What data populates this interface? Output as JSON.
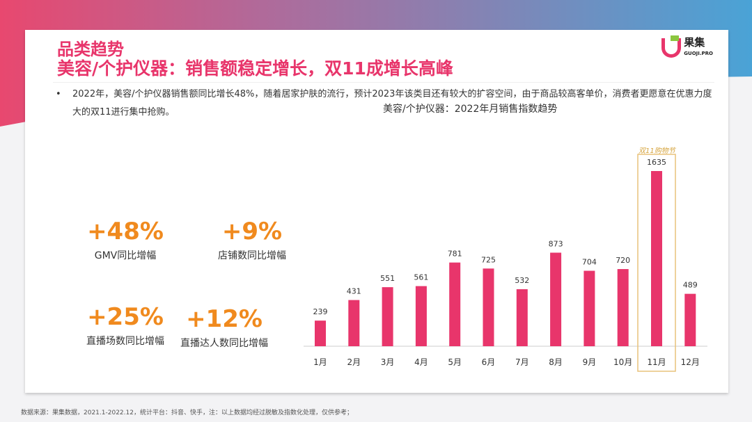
{
  "header": {
    "section_title": "品类趋势",
    "headline": "美容/个护仪器：销售额稳定增长，双11成增长高峰"
  },
  "logo": {
    "name": "果集",
    "sub": "GUOJI.PRO"
  },
  "bullet": "2022年，美容/个护仪器销售额同比增长48%，随着居家护肤的流行，预计2023年该类目还有较大的扩容空间，由于商品较高客单价，消费者更愿意在优惠力度大的双11进行集中抢购。",
  "stats": [
    {
      "value": "+48%",
      "label": "GMV同比增幅"
    },
    {
      "value": "+9%",
      "label": "店铺数同比增幅"
    },
    {
      "value": "+25%",
      "label": "直播场数同比增幅"
    },
    {
      "value": "+12%",
      "label": "直播达人数同比增幅"
    }
  ],
  "chart_data": {
    "type": "bar",
    "title": "美容/个护仪器：2022年月销售指数趋势",
    "categories": [
      "1月",
      "2月",
      "3月",
      "4月",
      "5月",
      "6月",
      "7月",
      "8月",
      "9月",
      "10月",
      "11月",
      "12月"
    ],
    "values": [
      239,
      431,
      551,
      561,
      781,
      725,
      532,
      873,
      704,
      720,
      1635,
      489
    ],
    "highlight": {
      "category": "11月",
      "label": "双11购物节"
    },
    "bar_color": "#e8356b",
    "highlight_color": "#e8c27a",
    "grid": false
  },
  "footer": "数据来源：果集数据，2021.1-2022.12，统计平台：抖音、快手，注：以上数据均经过脱敏及指数化处理，仅供参考；",
  "colors": {
    "accent": "#e8356b",
    "stat": "#f08a1e"
  }
}
